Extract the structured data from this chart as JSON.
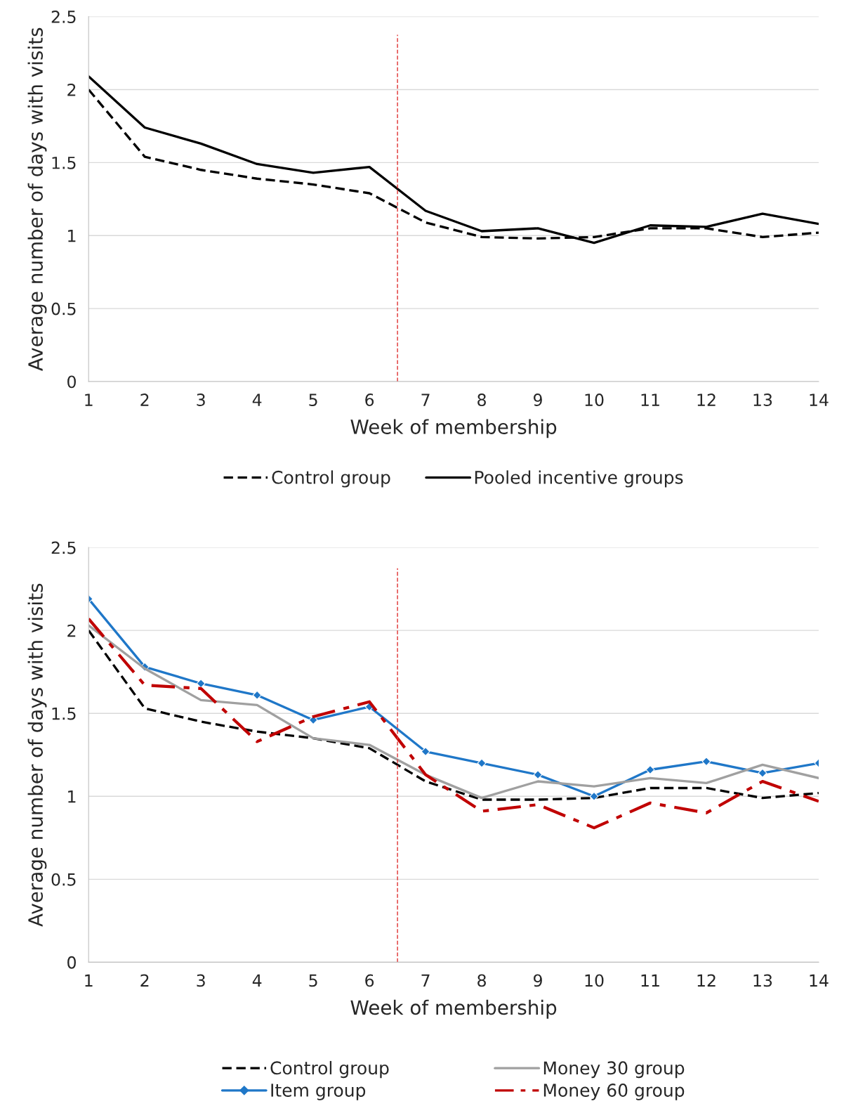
{
  "chart_data": [
    {
      "type": "line",
      "xlabel": "Week of membership",
      "ylabel": "Average number of days with visits",
      "x": [
        1,
        2,
        3,
        4,
        5,
        6,
        7,
        8,
        9,
        10,
        11,
        12,
        13,
        14
      ],
      "series": [
        {
          "name": "Control group",
          "color": "#000000",
          "line_style": "dashed",
          "values": [
            2.0,
            1.54,
            1.45,
            1.39,
            1.35,
            1.29,
            1.09,
            0.99,
            0.98,
            0.99,
            1.05,
            1.05,
            0.99,
            1.02
          ]
        },
        {
          "name": "Pooled incentive groups",
          "color": "#000000",
          "line_style": "solid",
          "values": [
            2.09,
            1.74,
            1.63,
            1.49,
            1.43,
            1.47,
            1.17,
            1.03,
            1.05,
            0.95,
            1.07,
            1.06,
            1.15,
            1.08
          ]
        }
      ],
      "xlim": [
        1,
        14
      ],
      "xticks": [
        1,
        2,
        3,
        4,
        5,
        6,
        7,
        8,
        9,
        10,
        11,
        12,
        13,
        14
      ],
      "ylim": [
        0,
        2.5
      ],
      "yticks": [
        0,
        0.5,
        1,
        1.5,
        2,
        2.5
      ],
      "grid": "y",
      "legend": "bottom",
      "ref_lines": [
        {
          "axis": "x",
          "value": 6.5,
          "color": "#e03030",
          "line_style": "dashed"
        }
      ]
    },
    {
      "type": "line",
      "xlabel": "Week of membership",
      "ylabel": "Average number of days with visits",
      "x": [
        1,
        2,
        3,
        4,
        5,
        6,
        7,
        8,
        9,
        10,
        11,
        12,
        13,
        14
      ],
      "series": [
        {
          "name": "Control group",
          "color": "#000000",
          "line_style": "dashed",
          "values": [
            2.0,
            1.53,
            1.45,
            1.39,
            1.35,
            1.29,
            1.09,
            0.98,
            0.98,
            0.99,
            1.05,
            1.05,
            0.99,
            1.02
          ]
        },
        {
          "name": "Item group",
          "color": "#1f77c8",
          "line_style": "solid",
          "marker": "diamond",
          "values": [
            2.19,
            1.78,
            1.68,
            1.61,
            1.46,
            1.54,
            1.27,
            1.2,
            1.13,
            1.0,
            1.16,
            1.21,
            1.14,
            1.2
          ]
        },
        {
          "name": "Money 30 group",
          "color": "#a0a0a0",
          "line_style": "solid",
          "values": [
            2.03,
            1.77,
            1.58,
            1.55,
            1.35,
            1.31,
            1.13,
            0.99,
            1.09,
            1.06,
            1.11,
            1.08,
            1.19,
            1.11
          ]
        },
        {
          "name": "Money 60 group",
          "color": "#c00000",
          "line_style": "dashdot",
          "values": [
            2.07,
            1.67,
            1.65,
            1.33,
            1.48,
            1.57,
            1.13,
            0.91,
            0.95,
            0.81,
            0.96,
            0.9,
            1.09,
            0.97
          ]
        }
      ],
      "xlim": [
        1,
        14
      ],
      "xticks": [
        1,
        2,
        3,
        4,
        5,
        6,
        7,
        8,
        9,
        10,
        11,
        12,
        13,
        14
      ],
      "ylim": [
        0,
        2.5
      ],
      "yticks": [
        0,
        0.5,
        1,
        1.5,
        2,
        2.5
      ],
      "grid": "y",
      "legend": "bottom",
      "ref_lines": [
        {
          "axis": "x",
          "value": 6.5,
          "color": "#e03030",
          "line_style": "dashed"
        }
      ]
    }
  ]
}
